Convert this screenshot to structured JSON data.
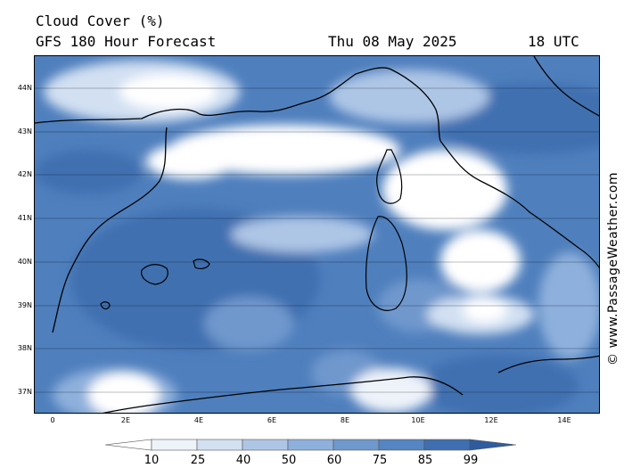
{
  "header": {
    "title": "Cloud Cover (%)",
    "subtitle": "GFS 180 Hour Forecast",
    "date": "Thu 08 May 2025",
    "time": "18 UTC"
  },
  "credit": "© www.PassageWeather.com",
  "axes": {
    "lat_labels": [
      "44N",
      "43N",
      "42N",
      "41N",
      "40N",
      "39N",
      "38N",
      "37N"
    ],
    "lon_labels": [
      "0",
      "2E",
      "4E",
      "6E",
      "8E",
      "10E",
      "12E",
      "14E"
    ]
  },
  "legend": {
    "labels": [
      "10",
      "25",
      "40",
      "50",
      "60",
      "75",
      "85",
      "99"
    ],
    "colors": [
      "#ffffff",
      "#eef3fa",
      "#d2e0f2",
      "#aec6e6",
      "#8eb0dc",
      "#6f98cd",
      "#5585c2",
      "#3f6fb0",
      "#2e5c9e"
    ]
  },
  "colors": {
    "clear": "#ffffff",
    "cloud_light": "#d2e0f2",
    "cloud_mid": "#8eb0dc",
    "cloud_heavy": "#5585c2",
    "cloud_dense": "#3f6fb0",
    "coastline": "#000000"
  }
}
